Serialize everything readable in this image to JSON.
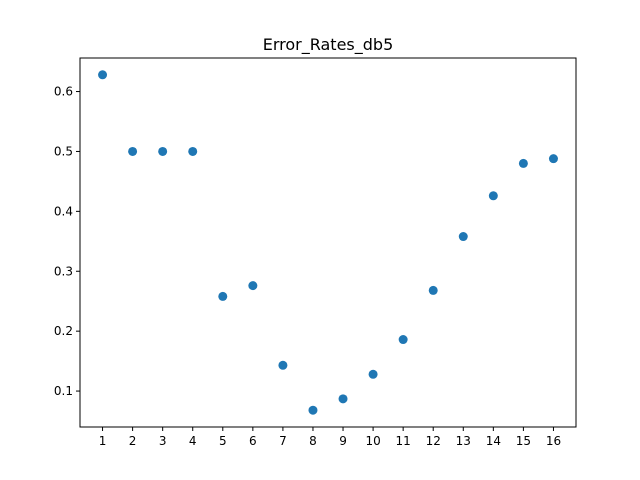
{
  "chart_data": {
    "type": "scatter",
    "title": "Error_Rates_db5",
    "xlabel": "",
    "ylabel": "",
    "x": [
      1,
      2,
      3,
      4,
      5,
      6,
      7,
      8,
      9,
      10,
      11,
      12,
      13,
      14,
      15,
      16
    ],
    "y": [
      0.628,
      0.5,
      0.5,
      0.5,
      0.258,
      0.276,
      0.143,
      0.068,
      0.087,
      0.128,
      0.186,
      0.268,
      0.358,
      0.426,
      0.48,
      0.488
    ],
    "x_ticks": [
      "1",
      "2",
      "3",
      "4",
      "5",
      "6",
      "7",
      "8",
      "9",
      "10",
      "11",
      "12",
      "13",
      "14",
      "15",
      "16"
    ],
    "y_ticks": [
      "0.1",
      "0.2",
      "0.3",
      "0.4",
      "0.5",
      "0.6"
    ],
    "xlim": [
      0.25,
      16.75
    ],
    "ylim": [
      0.04,
      0.656
    ],
    "grid": false,
    "legend": "none",
    "marker_color": "#1f77b4"
  }
}
